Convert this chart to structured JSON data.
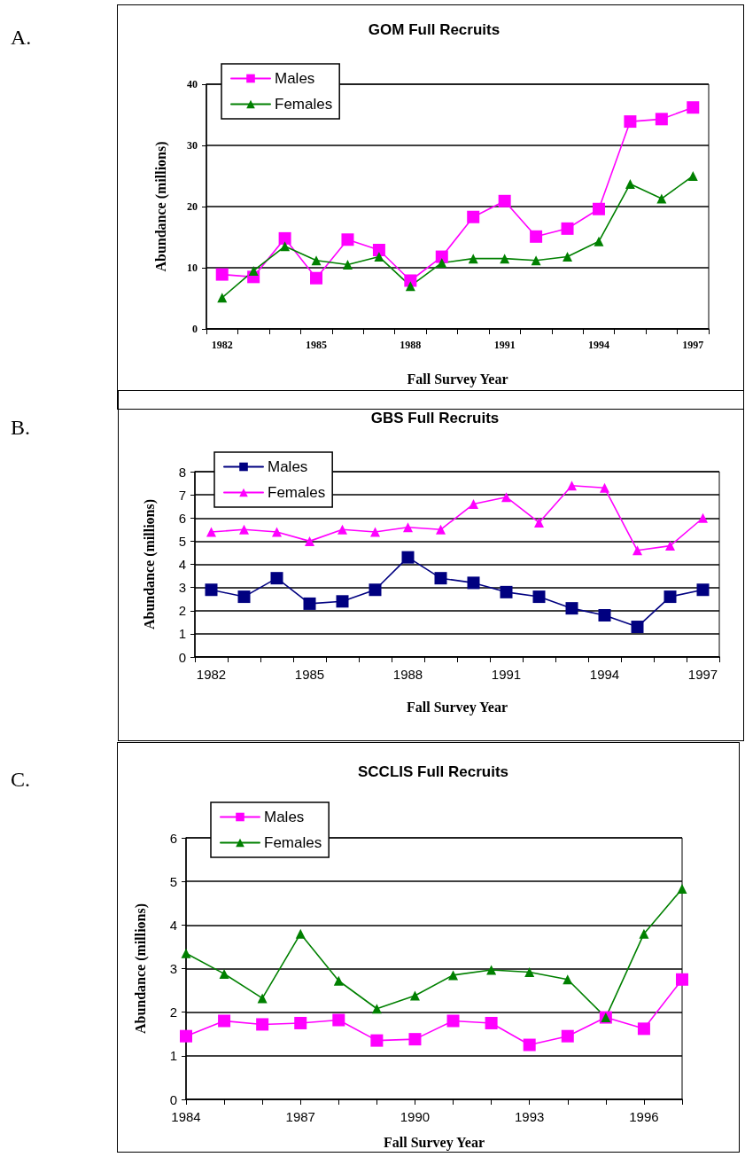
{
  "chart_data": [
    {
      "type": "line",
      "title": "GOM Full Recruits",
      "xlabel": "Fall Survey Year",
      "ylabel": "Abundance (millions)",
      "annotations": [
        "A."
      ],
      "categories": [
        "1982",
        null,
        null,
        "1985",
        null,
        null,
        "1988",
        null,
        null,
        "1991",
        null,
        null,
        "1994",
        null,
        null,
        "1997"
      ],
      "series": [
        {
          "name": "Males",
          "color": "#ff00ff",
          "marker": "square",
          "values": [
            8.9,
            8.5,
            14.8,
            8.3,
            14.6,
            12.9,
            7.9,
            11.8,
            18.3,
            20.9,
            15.1,
            16.4,
            19.6,
            33.9,
            34.3,
            36.2
          ]
        },
        {
          "name": "Females",
          "color": "#008000",
          "marker": "triangle",
          "values": [
            5.1,
            9.5,
            13.5,
            11.2,
            10.5,
            11.8,
            7.0,
            10.8,
            11.5,
            11.5,
            11.2,
            11.8,
            14.3,
            23.7,
            21.3,
            25.0
          ]
        }
      ],
      "ylim": [
        0,
        40
      ],
      "yticks": [
        0,
        10,
        20,
        30,
        40
      ],
      "grid": "y",
      "legend": "top left",
      "line_style": "solid"
    },
    {
      "type": "line",
      "title": "GBS Full Recruits",
      "xlabel": "Fall Survey Year",
      "ylabel": "Abundance (millions)",
      "annotations": [
        "B."
      ],
      "categories": [
        "1982",
        null,
        null,
        "1985",
        null,
        null,
        "1988",
        null,
        null,
        "1991",
        null,
        null,
        "1994",
        null,
        null,
        "1997"
      ],
      "series": [
        {
          "name": "Males",
          "color": "#000080",
          "marker": "square",
          "values": [
            2.9,
            2.6,
            3.4,
            2.3,
            2.4,
            2.9,
            4.3,
            3.4,
            3.2,
            2.8,
            2.6,
            2.1,
            1.8,
            1.3,
            2.6,
            2.9
          ]
        },
        {
          "name": "Females",
          "color": "#ff00ff",
          "marker": "triangle",
          "values": [
            5.4,
            5.5,
            5.4,
            5.0,
            5.5,
            5.4,
            5.6,
            5.5,
            6.6,
            6.9,
            5.8,
            7.4,
            7.3,
            4.6,
            4.8,
            6.0
          ]
        }
      ],
      "ylim": [
        0,
        8
      ],
      "yticks": [
        0,
        1,
        2,
        3,
        4,
        5,
        6,
        7,
        8
      ],
      "grid": "y",
      "legend": "top left",
      "line_style": "solid"
    },
    {
      "type": "line",
      "title": "SCCLIS Full Recruits",
      "xlabel": "Fall Survey Year",
      "ylabel": "Abundance (millions)",
      "annotations": [
        "C."
      ],
      "categories": [
        "1984",
        null,
        null,
        "1987",
        null,
        null,
        "1990",
        null,
        null,
        "1993",
        null,
        null,
        "1996",
        null
      ],
      "series": [
        {
          "name": "Males",
          "color": "#ff00ff",
          "marker": "square",
          "values": [
            1.45,
            1.8,
            1.72,
            1.75,
            1.82,
            1.35,
            1.38,
            1.8,
            1.75,
            1.25,
            1.45,
            1.88,
            1.62,
            2.75
          ]
        },
        {
          "name": "Females",
          "color": "#008000",
          "marker": "triangle",
          "values": [
            3.35,
            2.88,
            2.32,
            3.8,
            2.72,
            2.08,
            2.38,
            2.85,
            2.97,
            2.92,
            2.75,
            1.88,
            3.8,
            4.83
          ]
        }
      ],
      "ylim": [
        0,
        6
      ],
      "yticks": [
        0,
        1,
        2,
        3,
        4,
        5,
        6
      ],
      "grid": "y",
      "legend": "top left",
      "line_style": "solid"
    }
  ]
}
